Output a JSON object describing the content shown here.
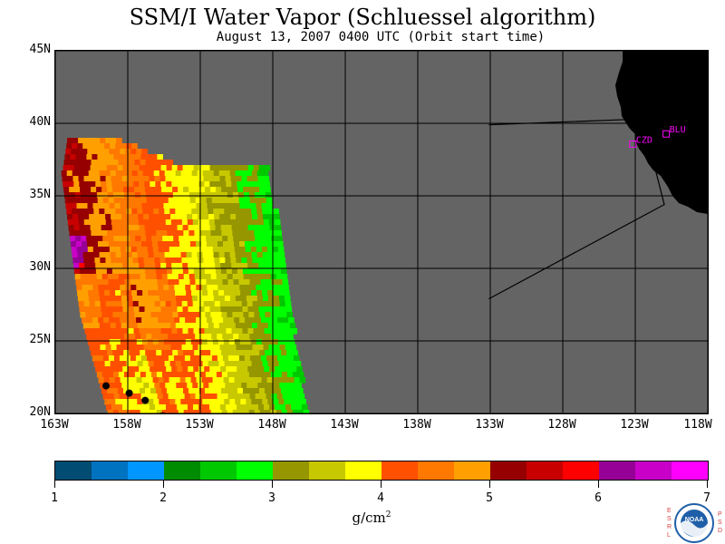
{
  "header": {
    "title": "SSM/I Water Vapor (Schluessel algorithm)",
    "subtitle": "August 13, 2007  0400 UTC  (Orbit start time)"
  },
  "map": {
    "region": {
      "lon_min": -163,
      "lon_max": -118,
      "lat_min": 20,
      "lat_max": 45
    },
    "land_color": "#000000",
    "no_data_color": "#646464",
    "grid_color": "#000000",
    "lat_labels": [
      "45N",
      "40N",
      "35N",
      "30N",
      "25N",
      "20N"
    ],
    "lon_labels": [
      "163W",
      "158W",
      "153W",
      "148W",
      "143W",
      "138W",
      "133W",
      "128W",
      "123W",
      "118W"
    ],
    "stations": [
      {
        "code": "CZD",
        "lat": 38.6,
        "lon": -123.2
      },
      {
        "code": "BLU",
        "lat": 39.3,
        "lon": -120.9
      }
    ],
    "domain_box": [
      [
        -133.1,
        39.9
      ],
      [
        -122.5,
        40.3
      ],
      [
        -121.0,
        34.4
      ],
      [
        -133.1,
        27.9
      ]
    ]
  },
  "colorbar": {
    "unit_base": "g/cm",
    "unit_exp": "2",
    "tick_labels": [
      "1",
      "2",
      "3",
      "4",
      "5",
      "6",
      "7"
    ],
    "colors": [
      "#004c73",
      "#0073c0",
      "#0096ff",
      "#008c00",
      "#00c800",
      "#00ff00",
      "#969600",
      "#c8c800",
      "#ffff00",
      "#ff5000",
      "#ff7800",
      "#ffa000",
      "#960000",
      "#c80000",
      "#ff0000",
      "#960096",
      "#c800c8",
      "#ff00ff"
    ]
  },
  "logo": {
    "left_letters": "ESRL",
    "right_letters": "PSD",
    "name": "NOAA"
  }
}
